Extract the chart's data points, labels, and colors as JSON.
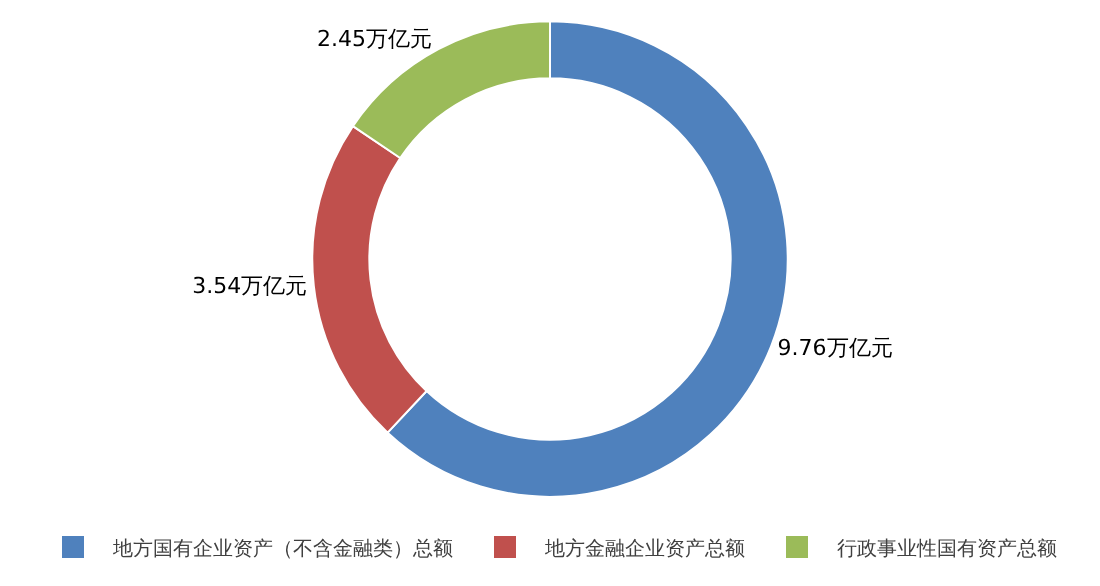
{
  "chart_data": {
    "type": "donut",
    "categories": [
      "地方国有企业资产（不含金融类）总额",
      "地方金融企业资产总额",
      "行政事业性国有资产总额"
    ],
    "values": [
      9.76,
      3.54,
      2.45
    ],
    "colors": [
      "#4f81bd",
      "#c0504d",
      "#9bbb59"
    ],
    "value_labels": [
      "9.76万亿元",
      "3.54万亿元",
      "2.45万亿元"
    ],
    "legend": "bottom"
  }
}
